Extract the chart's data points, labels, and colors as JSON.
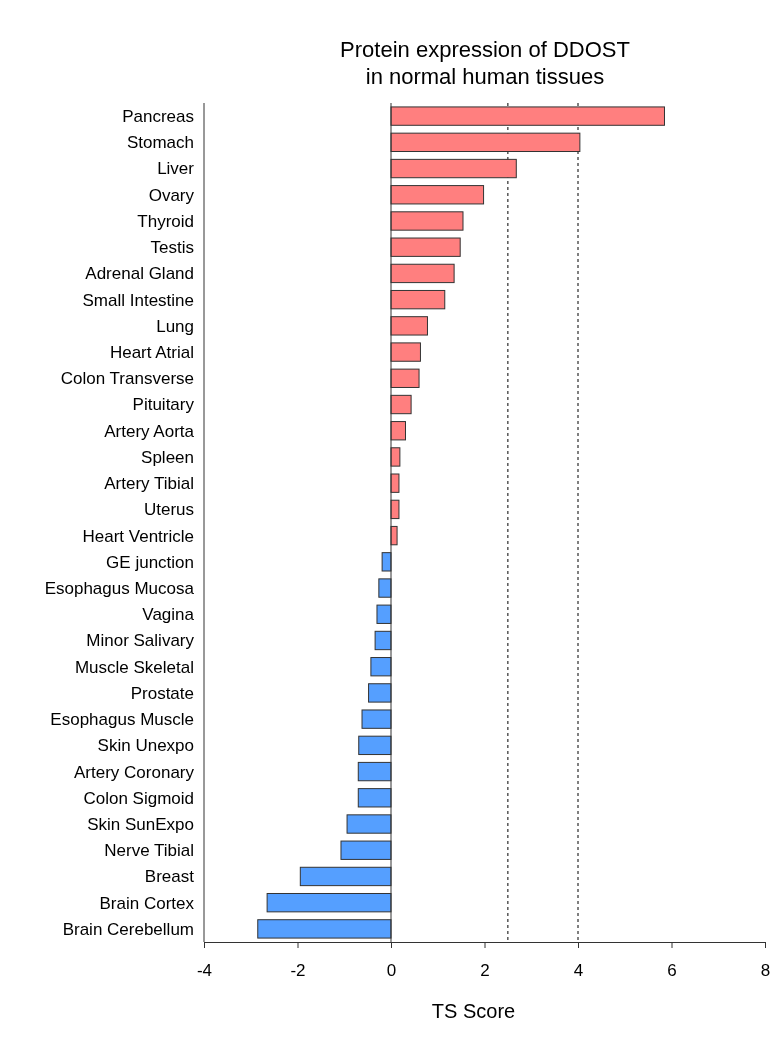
{
  "chart_data": {
    "type": "bar",
    "orientation": "horizontal",
    "title": "Protein expression of DDOST\nin normal human tissues",
    "xlabel": "TS Score",
    "categories": [
      "Pancreas",
      "Stomach",
      "Liver",
      "Ovary",
      "Thyroid",
      "Testis",
      "Adrenal Gland",
      "Small Intestine",
      "Lung",
      "Heart Atrial",
      "Colon Transverse",
      "Pituitary",
      "Artery Aorta",
      "Spleen",
      "Artery Tibial",
      "Uterus",
      "Heart Ventricle",
      "GE junction",
      "Esophagus Mucosa",
      "Vagina",
      "Minor Salivary",
      "Muscle Skeletal",
      "Prostate",
      "Esophagus Muscle",
      "Skin Unexpo",
      "Artery Coronary",
      "Colon Sigmoid",
      "Skin SunExpo",
      "Nerve Tibial",
      "Breast",
      "Brain Cortex",
      "Brain Cerebellum"
    ],
    "values": [
      5.85,
      4.04,
      2.68,
      1.98,
      1.54,
      1.48,
      1.35,
      1.15,
      0.78,
      0.63,
      0.6,
      0.43,
      0.31,
      0.19,
      0.17,
      0.17,
      0.13,
      -0.19,
      -0.26,
      -0.3,
      -0.34,
      -0.43,
      -0.48,
      -0.62,
      -0.69,
      -0.7,
      -0.7,
      -0.94,
      -1.07,
      -1.94,
      -2.65,
      -2.85
    ],
    "colors": [
      "#ff7f7f",
      "#ff7f7f",
      "#ff7f7f",
      "#ff7f7f",
      "#ff7f7f",
      "#ff7f7f",
      "#ff7f7f",
      "#ff7f7f",
      "#ff7f7f",
      "#ff7f7f",
      "#ff7f7f",
      "#ff7f7f",
      "#ff7f7f",
      "#ff7f7f",
      "#ff7f7f",
      "#ff7f7f",
      "#ff7f7f",
      "#559fff",
      "#559fff",
      "#559fff",
      "#559fff",
      "#559fff",
      "#559fff",
      "#559fff",
      "#559fff",
      "#559fff",
      "#559fff",
      "#559fff",
      "#559fff",
      "#559fff",
      "#559fff",
      "#559fff"
    ],
    "xlim": [
      -4,
      8
    ],
    "xticks": [
      -4,
      -2,
      0,
      2,
      4,
      6,
      8
    ],
    "ref_lines": [
      {
        "axis": "x",
        "value": 2.5,
        "line_style": "dotted"
      },
      {
        "axis": "x",
        "value": 4,
        "line_style": "dotted"
      }
    ]
  }
}
